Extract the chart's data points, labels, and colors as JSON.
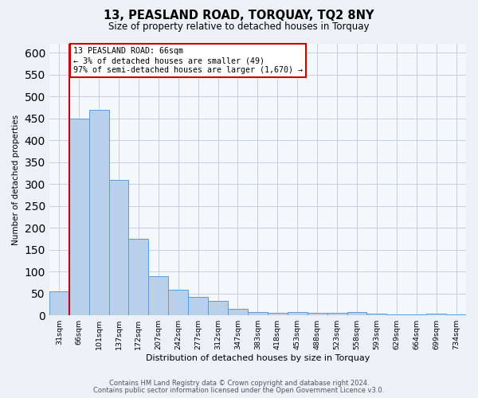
{
  "title": "13, PEASLAND ROAD, TORQUAY, TQ2 8NY",
  "subtitle": "Size of property relative to detached houses in Torquay",
  "xlabel": "Distribution of detached houses by size in Torquay",
  "ylabel": "Number of detached properties",
  "bar_labels": [
    "31sqm",
    "66sqm",
    "101sqm",
    "137sqm",
    "172sqm",
    "207sqm",
    "242sqm",
    "277sqm",
    "312sqm",
    "347sqm",
    "383sqm",
    "418sqm",
    "453sqm",
    "488sqm",
    "523sqm",
    "558sqm",
    "593sqm",
    "629sqm",
    "664sqm",
    "699sqm",
    "734sqm"
  ],
  "bar_values": [
    55,
    450,
    470,
    310,
    175,
    90,
    58,
    42,
    32,
    15,
    8,
    5,
    8,
    5,
    5,
    8,
    3,
    2,
    2,
    3,
    2
  ],
  "bar_color": "#b8d0ea",
  "bar_edgecolor": "#5b9bd5",
  "highlight_color": "#cc0000",
  "annotation_line1": "13 PEASLAND ROAD: 66sqm",
  "annotation_line2": "← 3% of detached houses are smaller (49)",
  "annotation_line3": "97% of semi-detached houses are larger (1,670) →",
  "annotation_box_color": "#ffffff",
  "annotation_box_edgecolor": "#cc0000",
  "ylim": [
    0,
    620
  ],
  "yticks": [
    0,
    50,
    100,
    150,
    200,
    250,
    300,
    350,
    400,
    450,
    500,
    550,
    600
  ],
  "footer1": "Contains HM Land Registry data © Crown copyright and database right 2024.",
  "footer2": "Contains public sector information licensed under the Open Government Licence v3.0.",
  "bg_color": "#ecf1f8",
  "plot_bg_color": "#f4f7fc",
  "grid_color": "#c5cfe0"
}
